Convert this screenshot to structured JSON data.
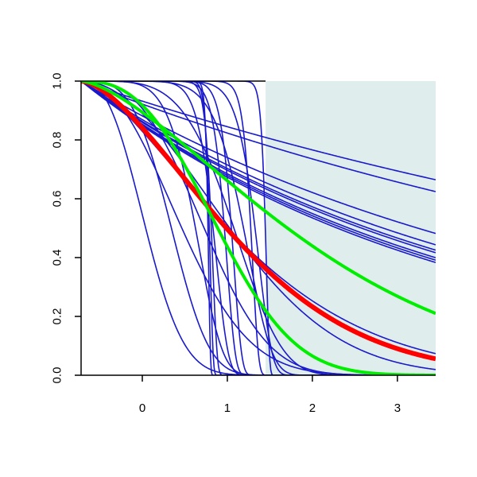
{
  "chart_data": {
    "type": "line",
    "title": "",
    "xlabel": "",
    "ylabel": "",
    "xlim": [
      -0.72,
      3.45
    ],
    "ylim": [
      0,
      1
    ],
    "x_ticks": [
      "0",
      "1",
      "2",
      "3"
    ],
    "y_ticks": [
      "0.0",
      "0.2",
      "0.4",
      "0.6",
      "0.8",
      "1.0"
    ],
    "grid": false,
    "legend": "none",
    "shaded_region": {
      "x_from": 1.45,
      "x_to": 3.45,
      "y_from": 0,
      "y_to": 1,
      "color": "#e0eded"
    },
    "x_start": -0.72,
    "families": {
      "exponential": {
        "color": "#1a1acc",
        "rates": [
          0.098,
          0.113,
          0.175,
          0.195,
          0.205,
          0.21,
          0.22,
          0.225,
          0.23
        ]
      },
      "weibull": {
        "color": "#1a1acc",
        "curves": [
          {
            "scale": 0.88,
            "shape": 2.5
          },
          {
            "scale": 1.4,
            "shape": 2.2
          },
          {
            "scale": 1.18,
            "shape": 3.5
          },
          {
            "scale": 1.65,
            "shape": 2.8
          },
          {
            "scale": 2.1,
            "shape": 2.0
          },
          {
            "scale": 2.2,
            "shape": 1.5
          },
          {
            "scale": 1.43,
            "shape": 6.0
          },
          {
            "scale": 1.95,
            "shape": 4.5
          },
          {
            "scale": 1.6,
            "shape": 12.0
          },
          {
            "scale": 2.0,
            "shape": 8.0
          },
          {
            "scale": 2.1,
            "shape": 14.0
          },
          {
            "scale": 1.55,
            "shape": 30.0
          },
          {
            "scale": 1.52,
            "shape": 45.0
          },
          {
            "scale": 1.5,
            "shape": 70.0
          },
          {
            "scale": 2.02,
            "shape": 30.0
          },
          {
            "scale": 1.8,
            "shape": 20.0
          },
          {
            "scale": 1.72,
            "shape": 18.0
          },
          {
            "scale": 2.18,
            "shape": 60.0
          }
        ]
      }
    },
    "summary_series": [
      {
        "role": "mean",
        "color": "#ff0000",
        "width": 6,
        "scale": 2.15,
        "shape": 1.6
      },
      {
        "role": "upper-band",
        "color": "#00ee00",
        "width": 4,
        "scale": 3.1,
        "shape": 1.5
      },
      {
        "role": "lower-band",
        "color": "#00ee00",
        "width": 4,
        "scale": 1.85,
        "shape": 2.6
      }
    ]
  }
}
